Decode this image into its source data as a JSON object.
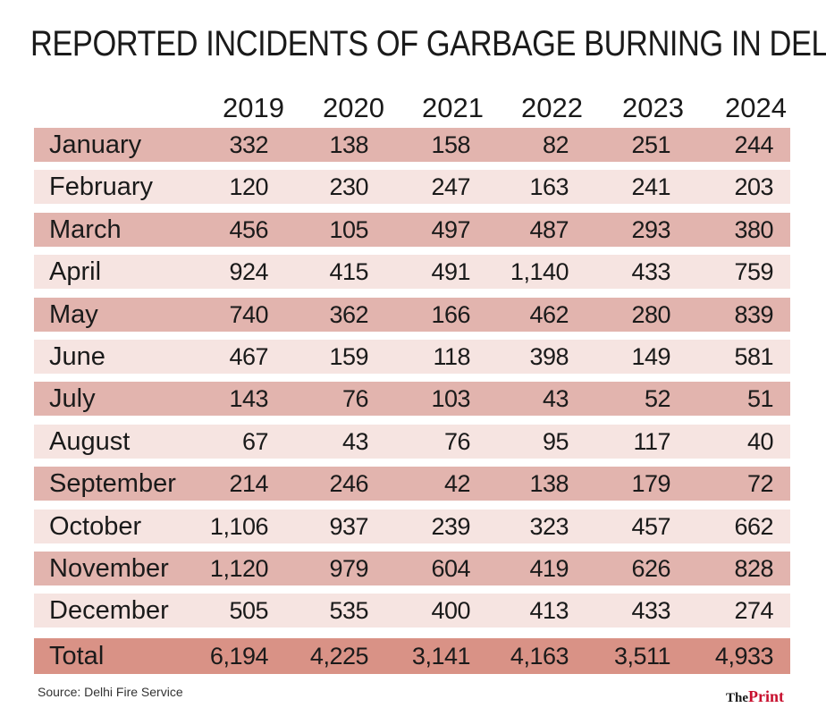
{
  "chart_data": {
    "type": "table",
    "title": "REPORTED INCIDENTS OF GARBAGE BURNING IN DELHI",
    "columns": [
      "2019",
      "2020",
      "2021",
      "2022",
      "2023",
      "2024"
    ],
    "rows": [
      {
        "label": "January",
        "values": [
          "332",
          "138",
          "158",
          "82",
          "251",
          "244"
        ]
      },
      {
        "label": "February",
        "values": [
          "120",
          "230",
          "247",
          "163",
          "241",
          "203"
        ]
      },
      {
        "label": "March",
        "values": [
          "456",
          "105",
          "497",
          "487",
          "293",
          "380"
        ]
      },
      {
        "label": "April",
        "values": [
          "924",
          "415",
          "491",
          "1,140",
          "433",
          "759"
        ]
      },
      {
        "label": "May",
        "values": [
          "740",
          "362",
          "166",
          "462",
          "280",
          "839"
        ]
      },
      {
        "label": "June",
        "values": [
          "467",
          "159",
          "118",
          "398",
          "149",
          "581"
        ]
      },
      {
        "label": "July",
        "values": [
          "143",
          "76",
          "103",
          "43",
          "52",
          "51"
        ]
      },
      {
        "label": "August",
        "values": [
          "67",
          "43",
          "76",
          "95",
          "117",
          "40"
        ]
      },
      {
        "label": "September",
        "values": [
          "214",
          "246",
          "42",
          "138",
          "179",
          "72"
        ]
      },
      {
        "label": "October",
        "values": [
          "1,106",
          "937",
          "239",
          "323",
          "457",
          "662"
        ]
      },
      {
        "label": "November",
        "values": [
          "1,120",
          "979",
          "604",
          "419",
          "626",
          "828"
        ]
      },
      {
        "label": "December",
        "values": [
          "505",
          "535",
          "400",
          "413",
          "433",
          "274"
        ]
      }
    ],
    "total": {
      "label": "Total",
      "values": [
        "6,194",
        "4,225",
        "3,141",
        "4,163",
        "3,511",
        "4,933"
      ]
    },
    "source": "Source: Delhi Fire Service"
  },
  "colors": {
    "row_dark": "#e2b4ae",
    "row_light": "#f6e4e1",
    "row_total": "#d99286",
    "logo_accent": "#c8102e"
  },
  "logo": {
    "the": "The",
    "print": "Print"
  }
}
